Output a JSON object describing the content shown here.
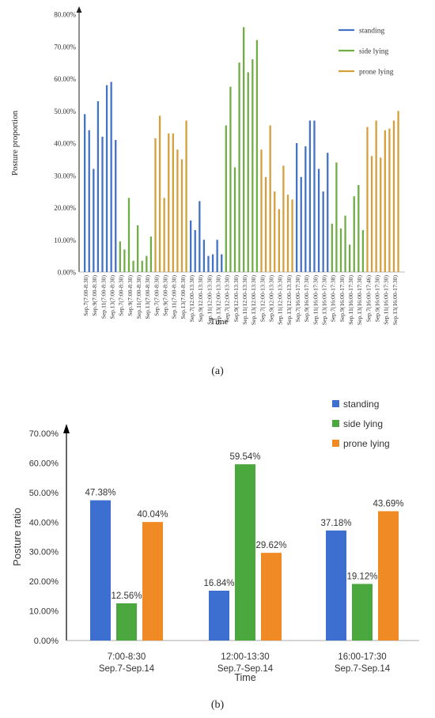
{
  "panel_a": {
    "caption": "(a)",
    "chart_data": {
      "type": "bar",
      "ylabel": "Posture proportion",
      "xlabel": "Time",
      "ylim": [
        0,
        80
      ],
      "y_ticks": [
        "0.00%",
        "10.00%",
        "20.00%",
        "30.00%",
        "40.00%",
        "50.00%",
        "60.00%",
        "70.00%",
        "80.00%"
      ],
      "legend_position": "top-right",
      "legend": [
        {
          "name": "standing",
          "color": "#4472c4"
        },
        {
          "name": "side lying",
          "color": "#70ad47"
        },
        {
          "name": "prone lying",
          "color": "#d4a03c"
        }
      ],
      "groups": [
        {
          "series": "standing",
          "values": [
            49,
            44,
            32,
            53,
            42,
            58,
            59,
            41
          ]
        },
        {
          "series": "side lying",
          "values": [
            9.5,
            7,
            23,
            3.5,
            14.5,
            3.5,
            5,
            11
          ]
        },
        {
          "series": "prone lying",
          "values": [
            41.5,
            48.5,
            23,
            43,
            43,
            38,
            35,
            47
          ]
        },
        {
          "series": "standing",
          "values": [
            16,
            13,
            22,
            10,
            5,
            5.5,
            10,
            5.5
          ]
        },
        {
          "series": "side lying",
          "values": [
            45.5,
            57.5,
            32.5,
            65,
            76,
            62,
            66,
            72
          ]
        },
        {
          "series": "prone lying",
          "values": [
            38,
            29.5,
            45.5,
            25,
            19.5,
            33,
            24,
            22.5
          ]
        },
        {
          "series": "standing",
          "values": [
            40,
            29.5,
            39,
            47,
            47,
            32,
            25,
            37
          ]
        },
        {
          "series": "side lying",
          "values": [
            15,
            34,
            13.5,
            17.5,
            8.5,
            23.5,
            27,
            13
          ]
        },
        {
          "series": "prone lying",
          "values": [
            45,
            36,
            47,
            35.5,
            44,
            44.5,
            47,
            50
          ]
        }
      ],
      "categories": [
        "Sep.7(7:00-8:30)",
        "Sep.9(7:00-8:30)",
        "Sep.11(7:00-8:30)",
        "Sep.13(7:00-8:30)",
        "Sep.7(7:00-8:30)",
        "Sep.9(7:00-8:30)",
        "Sep.11(7:00-8:30)",
        "Sep.13(7:00-8:30)",
        "Sep.7(7:00-8:30)",
        "Sep.9(7:00-8:30)",
        "Sep.11(7:00-8:30)",
        "Sep.13(7:00-8:30)",
        "Sep.7(12:00-13:30)",
        "Sep.9(12:00-13:30)",
        "Sep.11(12:00-13:30)",
        "Sep.13(12:00-13:30)",
        "Sep.7(12:00-13:30)",
        "Sep.9(12:00-13:30)",
        "Sep.11(12:00-13:30)",
        "Sep.13(12:00-13:30)",
        "Sep.7(12:00-13:30)",
        "Sep.9(12:00-13:30)",
        "Sep.11(12:00-13:30)",
        "Sep.13(12:00-13:30)",
        "Sep.7(16:00-17:30)",
        "Sep.9(16:00-17:30)",
        "Sep.11(16:00-17:30)",
        "Sep.13(16:00-17:30)",
        "Sep.7(16:00-17:38)",
        "Sep.9(16:00-17:30)",
        "Sep.11(16:00-17:30)",
        "Sep.13(16:00-17:30)",
        "Sep.7(16:00-17:46)",
        "Sep.9(16:00-17:30)",
        "Sep.11(16:00-17:30)",
        "Sep.13(16:00-17:30)"
      ]
    }
  },
  "panel_b": {
    "caption": "(b)",
    "chart_data": {
      "type": "bar",
      "ylabel": "Posture ratio",
      "xlabel": "Time",
      "ylim": [
        0,
        70
      ],
      "y_ticks": [
        "0.00%",
        "10.00%",
        "20.00%",
        "30.00%",
        "40.00%",
        "50.00%",
        "60.00%",
        "70.00%"
      ],
      "legend_position": "top-right",
      "categories": [
        {
          "line1": "7:00-8:30",
          "line2": "Sep.7-Sep.14"
        },
        {
          "line1": "12:00-13:30",
          "line2": "Sep.7-Sep.14"
        },
        {
          "line1": "16:00-17:30",
          "line2": "Sep.7-Sep.14"
        }
      ],
      "series": [
        {
          "name": "standing",
          "color": "#3c6fd0",
          "values": [
            47.38,
            16.84,
            37.18
          ],
          "labels": [
            "47.38%",
            "16.84%",
            "37.18%"
          ]
        },
        {
          "name": "side lying",
          "color": "#4aa83e",
          "values": [
            12.56,
            59.54,
            19.12
          ],
          "labels": [
            "12.56%",
            "59.54%",
            "19.12%"
          ]
        },
        {
          "name": "prone lying",
          "color": "#f08a24",
          "values": [
            40.04,
            29.62,
            43.69
          ],
          "labels": [
            "40.04%",
            "29.62%",
            "43.69%"
          ]
        }
      ]
    }
  }
}
